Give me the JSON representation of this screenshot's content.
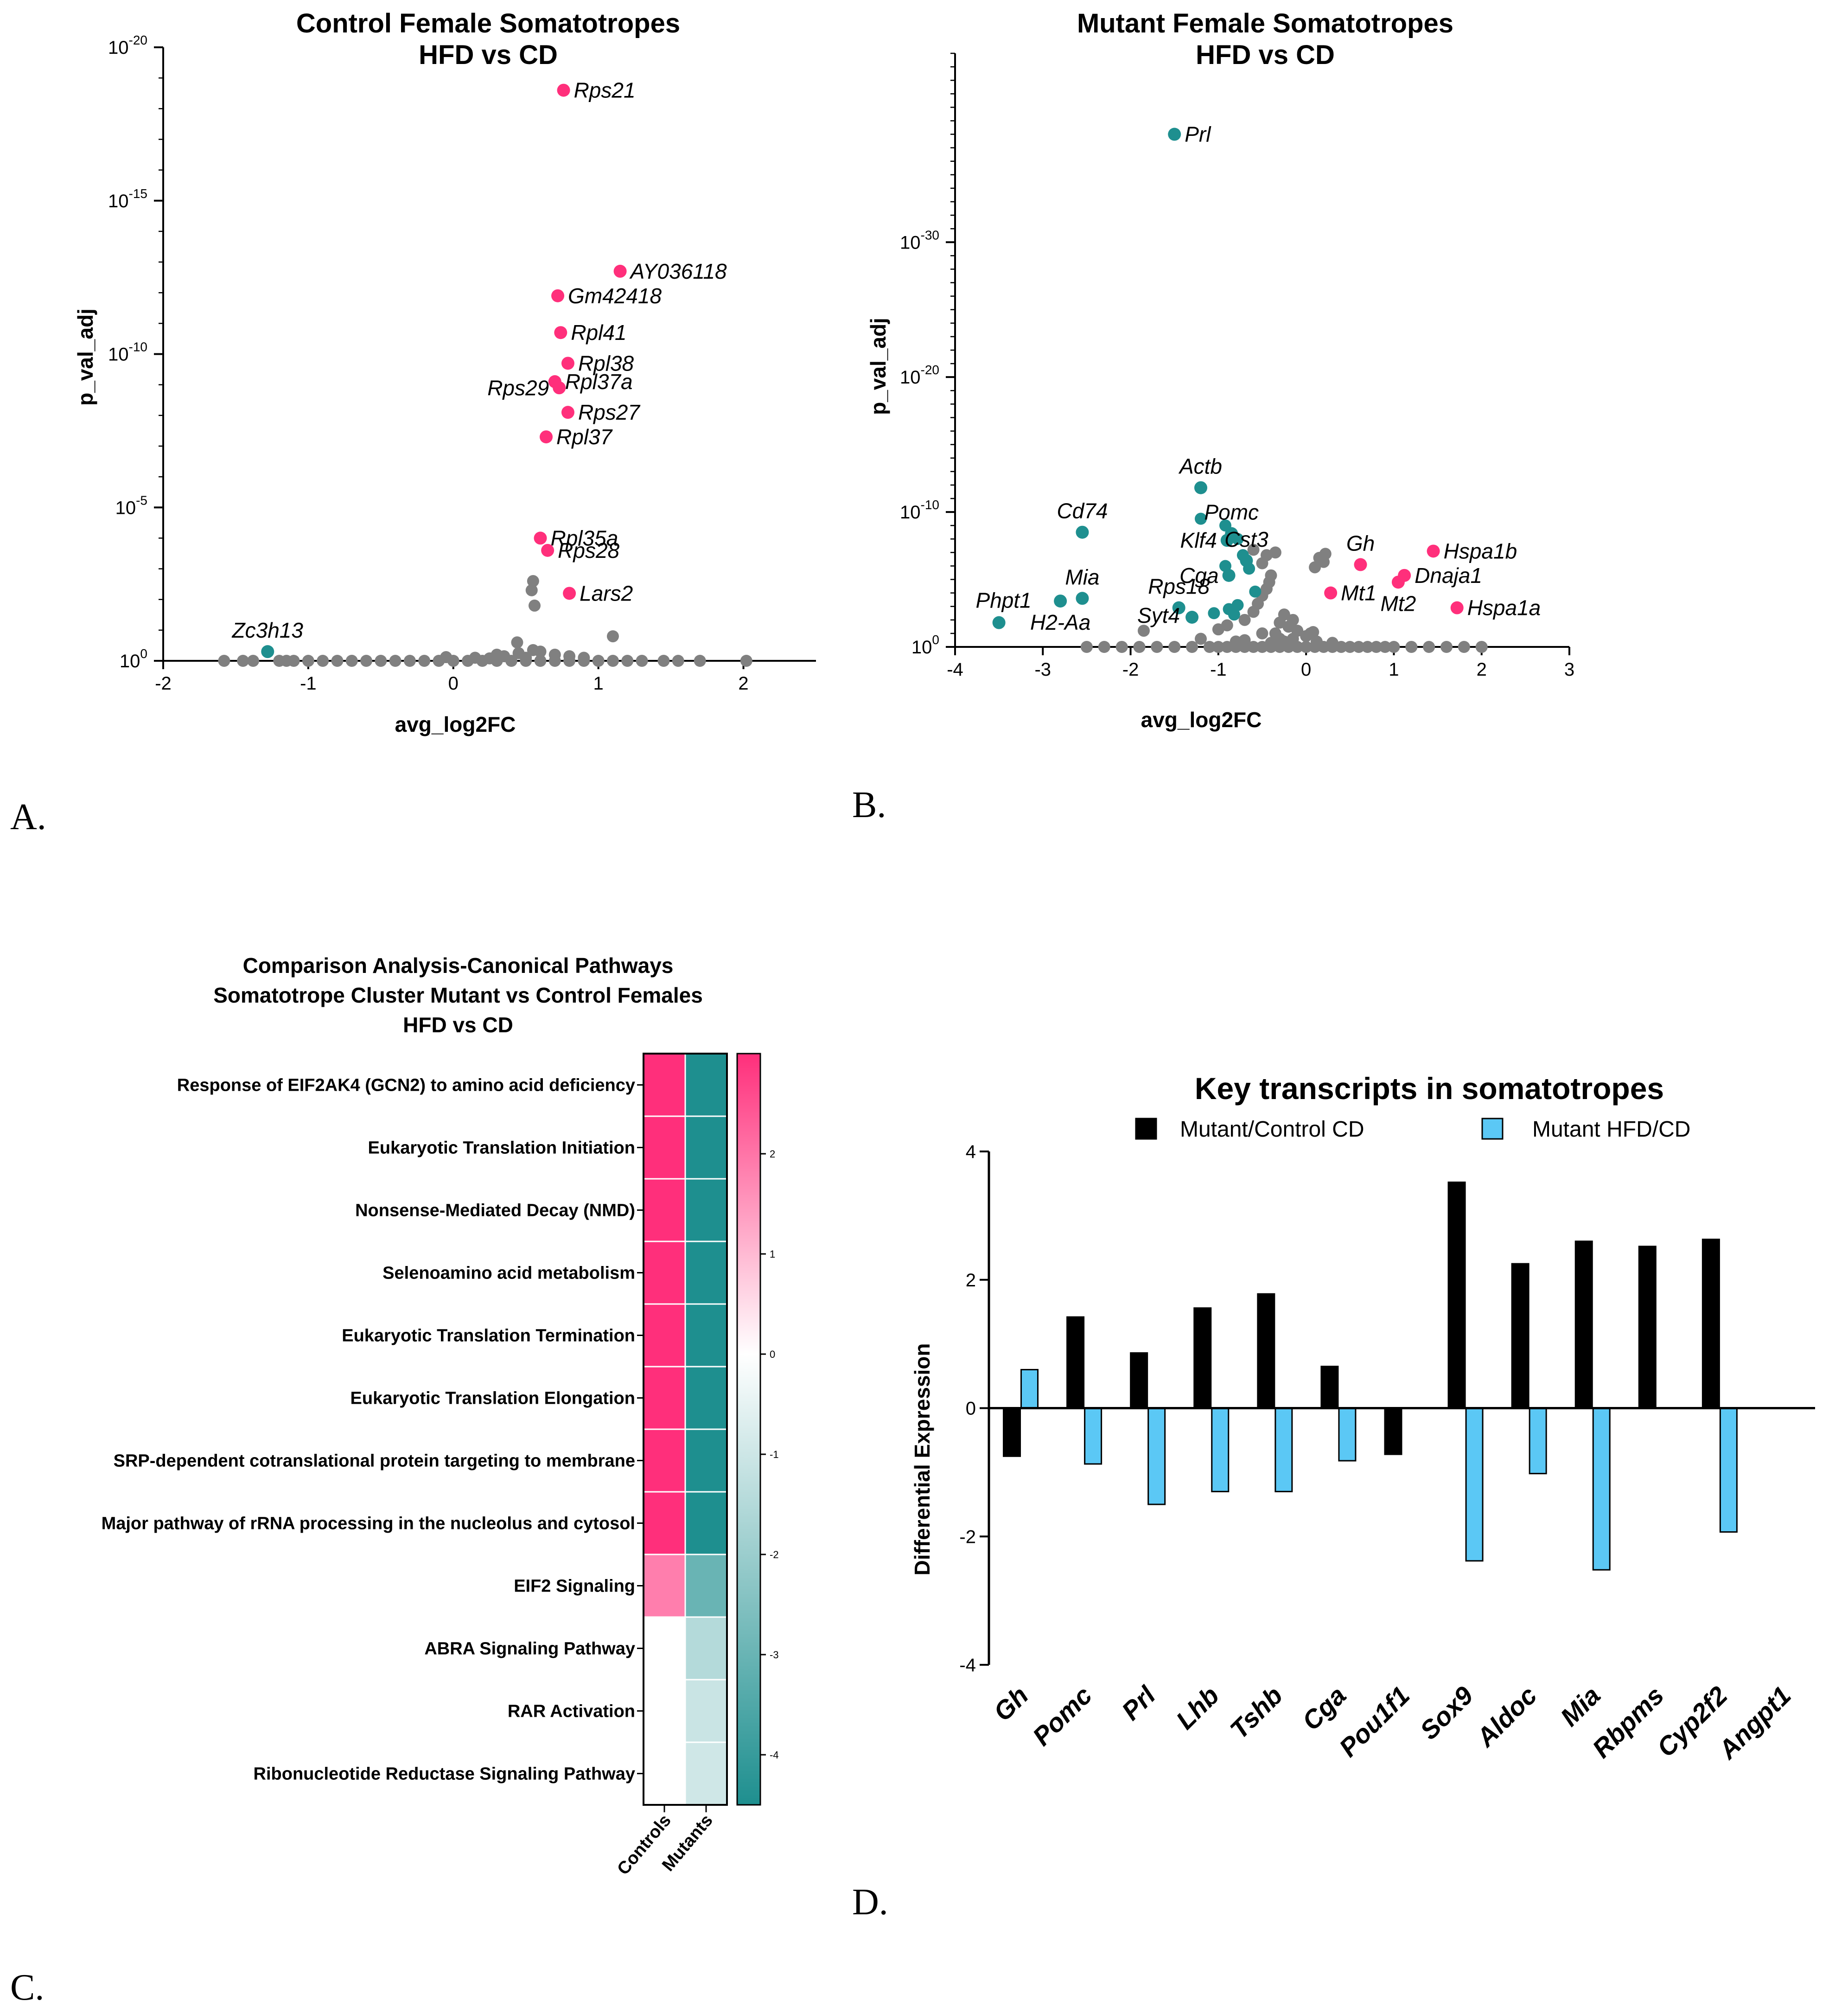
{
  "panel_labels": {
    "a": "A.",
    "b": "B.",
    "c": "C.",
    "d": "D."
  },
  "colors": {
    "up": "#ff2f7b",
    "down": "#1e8f8f",
    "ns": "#808080",
    "bar_black": "#000000",
    "bar_blue": "#5bc8f5"
  },
  "chart_data": [
    {
      "id": "A",
      "type": "scatter",
      "title": "Control Female Somatotropes",
      "subtitle": "HFD vs CD",
      "xlabel": "avg_log2FC",
      "ylabel": "p_val_adj",
      "xlim": [
        -2,
        2.5
      ],
      "ylim_exp": [
        0,
        20
      ],
      "x_ticks": [
        "-2",
        "-1",
        "0",
        "1",
        "2"
      ],
      "y_ticks": [
        {
          "base": "10",
          "exp": "0"
        },
        {
          "base": "10",
          "exp": "-5"
        },
        {
          "base": "10",
          "exp": "-10"
        },
        {
          "base": "10",
          "exp": "-15"
        },
        {
          "base": "10",
          "exp": "-20"
        }
      ],
      "labeled_points": [
        {
          "gene": "Rps21",
          "x": 0.76,
          "y": 18.6,
          "cls": "up",
          "side": "right"
        },
        {
          "gene": "AY036118",
          "x": 1.15,
          "y": 12.7,
          "cls": "up",
          "side": "right"
        },
        {
          "gene": "Gm42418",
          "x": 0.72,
          "y": 11.9,
          "cls": "up",
          "side": "right"
        },
        {
          "gene": "Rpl41",
          "x": 0.74,
          "y": 10.7,
          "cls": "up",
          "side": "right"
        },
        {
          "gene": "Rpl38",
          "x": 0.79,
          "y": 9.7,
          "cls": "up",
          "side": "right"
        },
        {
          "gene": "Rpl37a",
          "x": 0.7,
          "y": 9.1,
          "cls": "up",
          "side": "right"
        },
        {
          "gene": "Rps29",
          "x": 0.73,
          "y": 8.9,
          "cls": "up",
          "side": "left"
        },
        {
          "gene": "Rps27",
          "x": 0.79,
          "y": 8.1,
          "cls": "up",
          "side": "right"
        },
        {
          "gene": "Rpl37",
          "x": 0.64,
          "y": 7.3,
          "cls": "up",
          "side": "right"
        },
        {
          "gene": "Rpl35a",
          "x": 0.6,
          "y": 4.0,
          "cls": "up",
          "side": "right"
        },
        {
          "gene": "Rps28",
          "x": 0.65,
          "y": 3.6,
          "cls": "up",
          "side": "right"
        },
        {
          "gene": "Lars2",
          "x": 0.8,
          "y": 2.2,
          "cls": "up",
          "side": "right"
        },
        {
          "gene": "Zc3h13",
          "x": -1.28,
          "y": 0.3,
          "cls": "down",
          "side": "above"
        }
      ],
      "ns_points": [
        [
          -1.58,
          0
        ],
        [
          -1.45,
          0
        ],
        [
          -1.38,
          0
        ],
        [
          -1.2,
          0
        ],
        [
          -1.15,
          0
        ],
        [
          -1.1,
          0
        ],
        [
          -1.0,
          0
        ],
        [
          -0.9,
          0
        ],
        [
          -0.8,
          0
        ],
        [
          -0.7,
          0
        ],
        [
          -0.6,
          0
        ],
        [
          -0.5,
          0
        ],
        [
          -0.4,
          0
        ],
        [
          -0.3,
          0
        ],
        [
          -0.2,
          0
        ],
        [
          -0.1,
          0
        ],
        [
          0.0,
          0
        ],
        [
          0.1,
          0
        ],
        [
          0.2,
          0
        ],
        [
          0.3,
          0
        ],
        [
          0.4,
          0
        ],
        [
          0.5,
          0
        ],
        [
          0.6,
          0
        ],
        [
          0.7,
          0
        ],
        [
          0.8,
          0
        ],
        [
          0.9,
          0
        ],
        [
          1.0,
          0
        ],
        [
          1.1,
          0
        ],
        [
          1.2,
          0
        ],
        [
          1.3,
          0
        ],
        [
          1.45,
          0
        ],
        [
          1.55,
          0
        ],
        [
          1.7,
          0
        ],
        [
          2.02,
          0
        ],
        [
          0.44,
          0.6
        ],
        [
          0.55,
          0.35
        ],
        [
          1.1,
          0.8
        ],
        [
          0.56,
          1.8
        ],
        [
          0.54,
          2.3
        ],
        [
          0.55,
          2.6
        ],
        [
          0.3,
          0.2
        ],
        [
          0.35,
          0.15
        ],
        [
          0.45,
          0.25
        ],
        [
          0.6,
          0.3
        ],
        [
          0.7,
          0.2
        ],
        [
          0.8,
          0.15
        ],
        [
          0.9,
          0.1
        ],
        [
          0.5,
          0.1
        ],
        [
          -0.05,
          0.12
        ],
        [
          0.15,
          0.1
        ],
        [
          0.25,
          0.08
        ]
      ]
    },
    {
      "id": "B",
      "type": "scatter",
      "title": "Mutant Female Somatotropes",
      "subtitle": "HFD vs CD",
      "xlabel": "avg_log2FC",
      "ylabel": "p_val_adj",
      "xlim": [
        -4,
        3
      ],
      "ylim_exp": [
        0,
        44
      ],
      "x_ticks": [
        "-4",
        "-3",
        "-2",
        "-1",
        "0",
        "1",
        "2",
        "3"
      ],
      "y_ticks": [
        {
          "base": "10",
          "exp": "0"
        },
        {
          "base": "10",
          "exp": "-10"
        },
        {
          "base": "10",
          "exp": "-20"
        },
        {
          "base": "10",
          "exp": "-30"
        }
      ],
      "labeled_points": [
        {
          "gene": "Prl",
          "x": -1.5,
          "y": 38.0,
          "cls": "down",
          "side": "right"
        },
        {
          "gene": "Actb",
          "x": -1.2,
          "y": 11.8,
          "cls": "down",
          "side": "above"
        },
        {
          "gene": "Cd74",
          "x": -2.55,
          "y": 8.5,
          "cls": "down",
          "side": "above"
        },
        {
          "gene": "Pomc",
          "x": -0.85,
          "y": 8.4,
          "cls": "down",
          "side": "above"
        },
        {
          "gene": "Klf4",
          "x": -0.9,
          "y": 7.9,
          "cls": "down",
          "side": "left"
        },
        {
          "gene": "Cst3",
          "x": -0.68,
          "y": 6.4,
          "cls": "down",
          "side": "above"
        },
        {
          "gene": "Cga",
          "x": -0.88,
          "y": 5.3,
          "cls": "down",
          "side": "left"
        },
        {
          "gene": "Mia",
          "x": -2.55,
          "y": 3.6,
          "cls": "down",
          "side": "above"
        },
        {
          "gene": "Rps18",
          "x": -1.45,
          "y": 2.9,
          "cls": "down",
          "side": "above"
        },
        {
          "gene": "H2-Aa",
          "x": -2.8,
          "y": 3.4,
          "cls": "down",
          "side": "below"
        },
        {
          "gene": "Syt4",
          "x": -1.3,
          "y": 2.2,
          "cls": "down",
          "side": "belowleft"
        },
        {
          "gene": "Phpt1",
          "x": -3.5,
          "y": 1.8,
          "cls": "down",
          "side": "aboveleft"
        },
        {
          "gene": "Gh",
          "x": 0.62,
          "y": 6.1,
          "cls": "up",
          "side": "above"
        },
        {
          "gene": "Hspa1b",
          "x": 1.45,
          "y": 7.1,
          "cls": "up",
          "side": "right"
        },
        {
          "gene": "Dnaja1",
          "x": 1.12,
          "y": 5.3,
          "cls": "up",
          "side": "right"
        },
        {
          "gene": "Mt1",
          "x": 0.28,
          "y": 4.0,
          "cls": "up",
          "side": "right"
        },
        {
          "gene": "Mt2",
          "x": 1.05,
          "y": 4.8,
          "cls": "up",
          "side": "below"
        },
        {
          "gene": "Hspa1a",
          "x": 1.72,
          "y": 2.9,
          "cls": "up",
          "side": "right"
        }
      ],
      "extra_down": [
        [
          -1.2,
          9.5
        ],
        [
          -0.92,
          9.0
        ],
        [
          -0.78,
          8.0
        ],
        [
          -0.72,
          6.8
        ],
        [
          -0.92,
          6.0
        ],
        [
          -0.65,
          5.8
        ],
        [
          -0.58,
          4.1
        ],
        [
          -0.78,
          3.1
        ],
        [
          -0.88,
          2.8
        ],
        [
          -1.05,
          2.5
        ],
        [
          -0.82,
          2.4
        ]
      ],
      "ns_points": [
        [
          -2.5,
          0
        ],
        [
          -2.3,
          0
        ],
        [
          -2.1,
          0
        ],
        [
          -1.9,
          0
        ],
        [
          -1.7,
          0
        ],
        [
          -1.5,
          0
        ],
        [
          -1.3,
          0
        ],
        [
          -1.1,
          0
        ],
        [
          -1.0,
          0
        ],
        [
          -0.9,
          0
        ],
        [
          -0.8,
          0
        ],
        [
          -0.7,
          0
        ],
        [
          -0.6,
          0
        ],
        [
          -0.5,
          0
        ],
        [
          -0.4,
          0
        ],
        [
          -0.3,
          0
        ],
        [
          -0.2,
          0
        ],
        [
          -0.1,
          0
        ],
        [
          0.0,
          0
        ],
        [
          0.1,
          0
        ],
        [
          0.2,
          0
        ],
        [
          0.3,
          0
        ],
        [
          0.4,
          0
        ],
        [
          0.5,
          0
        ],
        [
          0.6,
          0
        ],
        [
          0.7,
          0
        ],
        [
          0.8,
          0
        ],
        [
          0.9,
          0
        ],
        [
          1.0,
          0
        ],
        [
          1.2,
          0
        ],
        [
          1.4,
          0
        ],
        [
          1.6,
          0
        ],
        [
          1.8,
          0
        ],
        [
          2.0,
          0
        ],
        [
          -1.85,
          1.2
        ],
        [
          -1.0,
          1.3
        ],
        [
          -0.9,
          1.6
        ],
        [
          -0.7,
          2.0
        ],
        [
          -0.6,
          2.6
        ],
        [
          -0.55,
          3.2
        ],
        [
          -0.5,
          3.8
        ],
        [
          -0.45,
          4.3
        ],
        [
          -0.42,
          4.8
        ],
        [
          -0.4,
          5.3
        ],
        [
          -0.5,
          6.2
        ],
        [
          -0.45,
          6.8
        ],
        [
          -0.35,
          7.0
        ],
        [
          -0.6,
          7.2
        ],
        [
          -0.3,
          1.8
        ],
        [
          -0.25,
          2.4
        ],
        [
          -0.2,
          1.5
        ],
        [
          -0.15,
          2.0
        ],
        [
          -0.1,
          1.2
        ],
        [
          -0.35,
          1.0
        ],
        [
          -0.5,
          1.0
        ],
        [
          -0.3,
          0.6
        ],
        [
          -0.15,
          0.6
        ],
        [
          0.0,
          0.8
        ],
        [
          0.05,
          1.0
        ],
        [
          0.1,
          5.9
        ],
        [
          0.15,
          6.6
        ],
        [
          0.2,
          6.3
        ],
        [
          0.22,
          6.9
        ],
        [
          0.08,
          1.1
        ],
        [
          0.12,
          0.4
        ],
        [
          -0.7,
          0.5
        ],
        [
          -0.8,
          0.4
        ],
        [
          -1.2,
          0.6
        ],
        [
          -0.4,
          0.3
        ],
        [
          -0.25,
          0.4
        ],
        [
          0.3,
          0.3
        ]
      ]
    },
    {
      "id": "C",
      "type": "heatmap",
      "title_lines": [
        "Comparison Analysis-Canonical Pathways",
        "Somatotrope Cluster Mutant vs Control Females",
        "HFD vs CD"
      ],
      "columns": [
        "Controls",
        "Mutants"
      ],
      "rows": [
        {
          "label": "Response of EIF2AK4 (GCN2) to amino acid deficiency",
          "values": [
            2.9,
            -4.2
          ]
        },
        {
          "label": "Eukaryotic Translation Initiation",
          "values": [
            2.9,
            -4.2
          ]
        },
        {
          "label": "Nonsense-Mediated Decay (NMD)",
          "values": [
            2.9,
            -4.2
          ]
        },
        {
          "label": "Selenoamino acid metabolism",
          "values": [
            2.9,
            -4.2
          ]
        },
        {
          "label": "Eukaryotic Translation Termination",
          "values": [
            2.9,
            -4.2
          ]
        },
        {
          "label": "Eukaryotic Translation Elongation",
          "values": [
            2.9,
            -4.2
          ]
        },
        {
          "label": "SRP-dependent cotranslational protein targeting to membrane",
          "values": [
            2.9,
            -4.2
          ]
        },
        {
          "label": "Major pathway of rRNA processing in the nucleolus and cytosol",
          "values": [
            2.9,
            -4.2
          ]
        },
        {
          "label": "EIF2 Signaling",
          "values": [
            1.8,
            -2.8
          ]
        },
        {
          "label": "ABRA Signaling Pathway",
          "values": [
            0,
            -1.4
          ]
        },
        {
          "label": "RAR Activation",
          "values": [
            0,
            -1.0
          ]
        },
        {
          "label": "Ribonucleotide Reductase Signaling Pathway",
          "values": [
            0,
            -0.9
          ]
        }
      ],
      "colorbar": {
        "min": -4.5,
        "max": 3.0,
        "ticks": [
          "2",
          "1",
          "0",
          "-1",
          "-2",
          "-3",
          "-4"
        ]
      }
    },
    {
      "id": "D",
      "type": "bar",
      "title": "Key transcripts in somatotropes",
      "ylabel": "Differential Expression",
      "ylim": [
        -4,
        4
      ],
      "y_ticks": [
        "4",
        "2",
        "0",
        "-2",
        "-4"
      ],
      "categories": [
        "Gh",
        "Pomc",
        "Prl",
        "Lhb",
        "Tshb",
        "Cga",
        "Pou1f1",
        "Sox9",
        "Aldoc",
        "Mia",
        "Rbpms",
        "Cyp2f2",
        "Angpt1"
      ],
      "series": [
        {
          "name": "Mutant/Control CD",
          "values": [
            -0.75,
            1.42,
            0.86,
            1.56,
            1.78,
            0.65,
            -0.72,
            3.52,
            2.25,
            2.6,
            2.52,
            2.63,
            null
          ]
        },
        {
          "name": "Mutant HFD/CD",
          "values": [
            0.6,
            -0.87,
            -1.5,
            -1.3,
            -1.3,
            -0.82,
            null,
            -2.38,
            -1.02,
            -2.52,
            null,
            -1.93,
            null
          ]
        }
      ]
    }
  ]
}
